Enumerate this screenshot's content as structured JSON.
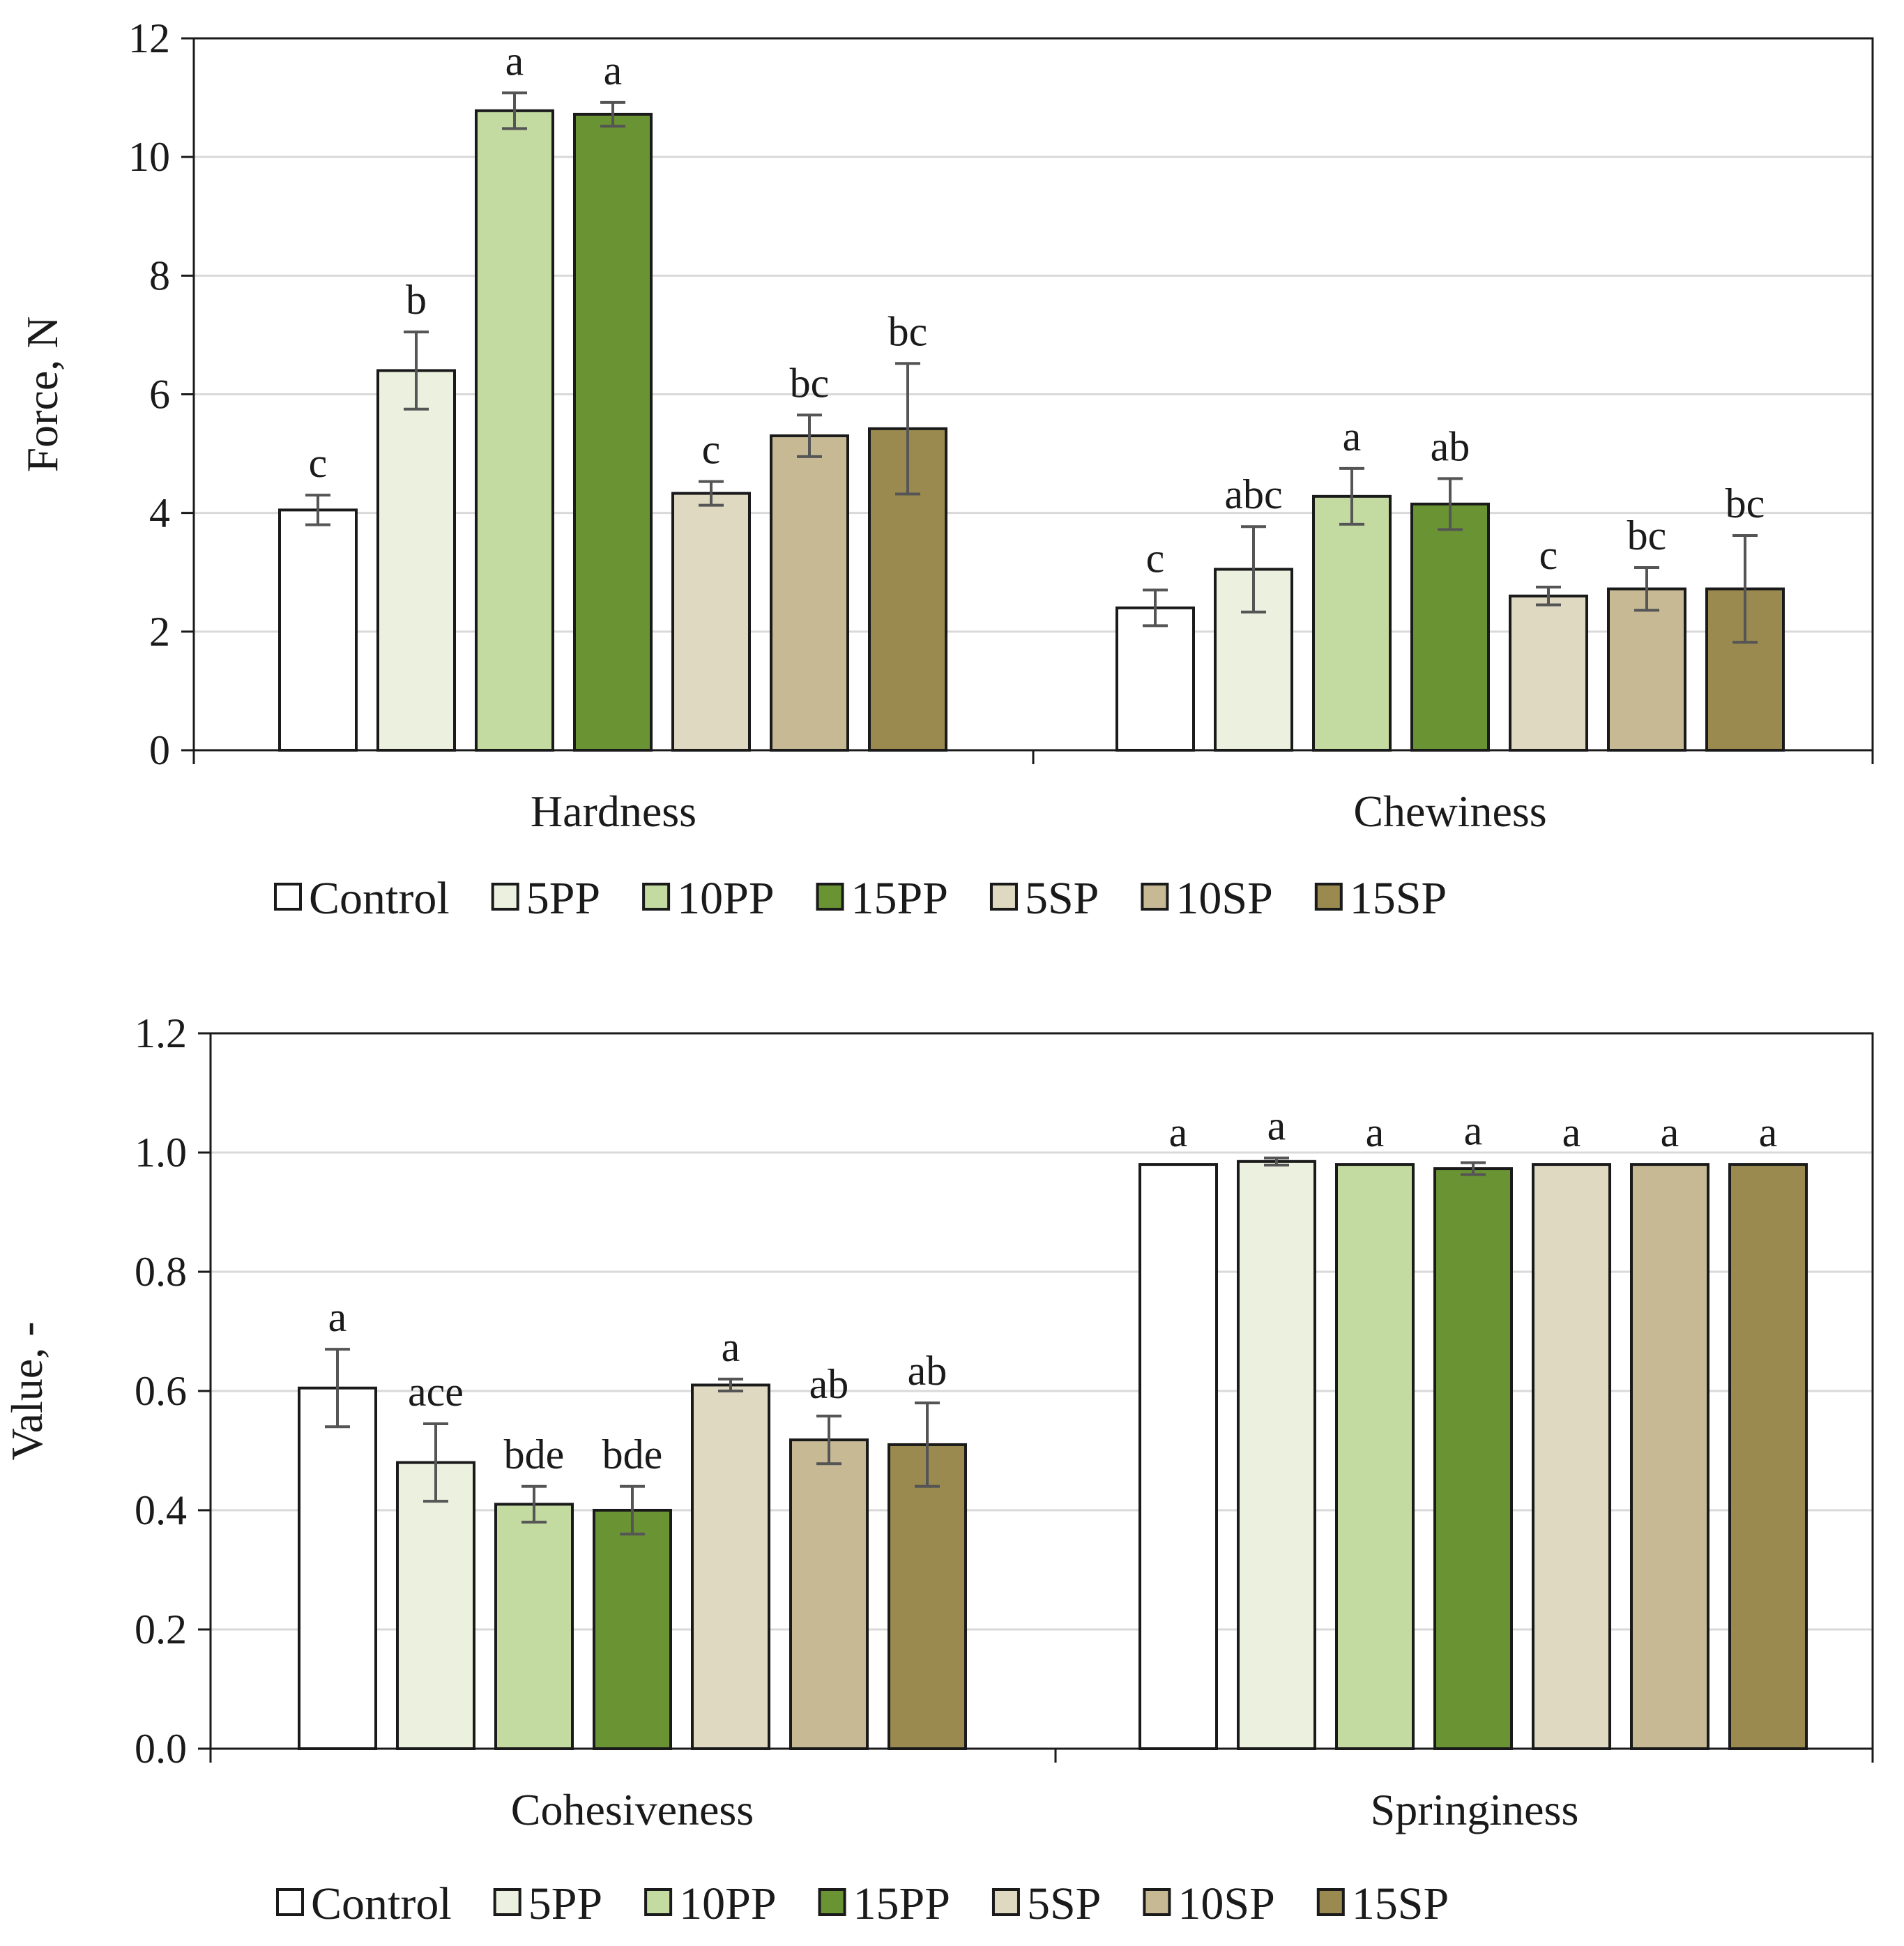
{
  "legend_labels": [
    "Control",
    "5PP",
    "10PP",
    "15PP",
    "5SP",
    "10SP",
    "15SP"
  ],
  "colors": {
    "series": [
      "#ffffff",
      "#ebf1de",
      "#c3dba0",
      "#6a9433",
      "#dfd9c2",
      "#c6b994",
      "#9a8a50"
    ],
    "bar_stroke": "#1a1a1a",
    "grid": "#d9d9d9",
    "error_bar": "#555555",
    "axis": "#1a1a1a"
  },
  "chart_data": [
    {
      "type": "bar",
      "ylabel": "Force, N",
      "ylim": [
        0,
        12
      ],
      "ytick_step": 2,
      "ytick_labels": [
        "0",
        "2",
        "4",
        "6",
        "8",
        "10",
        "12"
      ],
      "categories": [
        "Hardness",
        "Chewiness"
      ],
      "legend": "bottom",
      "series": [
        {
          "name": "Control",
          "values": [
            4.05,
            2.4
          ],
          "errors": [
            0.25,
            0.3
          ],
          "letters": [
            "c",
            "c"
          ]
        },
        {
          "name": "5PP",
          "values": [
            6.4,
            3.05
          ],
          "errors": [
            0.65,
            0.72
          ],
          "letters": [
            "b",
            "abc"
          ]
        },
        {
          "name": "10PP",
          "values": [
            10.78,
            4.28
          ],
          "errors": [
            0.3,
            0.47
          ],
          "letters": [
            "a",
            "a"
          ]
        },
        {
          "name": "15PP",
          "values": [
            10.72,
            4.15
          ],
          "errors": [
            0.2,
            0.43
          ],
          "letters": [
            "a",
            "ab"
          ]
        },
        {
          "name": "5SP",
          "values": [
            4.33,
            2.6
          ],
          "errors": [
            0.2,
            0.15
          ],
          "letters": [
            "c",
            "c"
          ]
        },
        {
          "name": "10SP",
          "values": [
            5.3,
            2.72
          ],
          "errors": [
            0.35,
            0.36
          ],
          "letters": [
            "bc",
            "bc"
          ]
        },
        {
          "name": "15SP",
          "values": [
            5.42,
            2.72
          ],
          "errors": [
            1.1,
            0.9
          ],
          "letters": [
            "bc",
            "bc"
          ]
        }
      ]
    },
    {
      "type": "bar",
      "ylabel": "Value, -",
      "ylim": [
        0,
        1.2
      ],
      "ytick_step": 0.2,
      "ytick_labels": [
        "0.0",
        "0.2",
        "0.4",
        "0.6",
        "0.8",
        "1.0",
        "1.2"
      ],
      "categories": [
        "Cohesiveness",
        "Springiness"
      ],
      "legend": "bottom",
      "series": [
        {
          "name": "Control",
          "values": [
            0.605,
            0.98
          ],
          "errors": [
            0.065,
            0
          ],
          "letters": [
            "a",
            "a"
          ]
        },
        {
          "name": "5PP",
          "values": [
            0.48,
            0.985
          ],
          "errors": [
            0.065,
            0.006
          ],
          "letters": [
            "ace",
            "a"
          ]
        },
        {
          "name": "10PP",
          "values": [
            0.41,
            0.98
          ],
          "errors": [
            0.03,
            0
          ],
          "letters": [
            "bde",
            "a"
          ]
        },
        {
          "name": "15PP",
          "values": [
            0.4,
            0.973
          ],
          "errors": [
            0.04,
            0.01
          ],
          "letters": [
            "bde",
            "a"
          ]
        },
        {
          "name": "5SP",
          "values": [
            0.61,
            0.98
          ],
          "errors": [
            0.01,
            0
          ],
          "letters": [
            "a",
            "a"
          ]
        },
        {
          "name": "10SP",
          "values": [
            0.518,
            0.98
          ],
          "errors": [
            0.04,
            0
          ],
          "letters": [
            "ab",
            "a"
          ]
        },
        {
          "name": "15SP",
          "values": [
            0.51,
            0.98
          ],
          "errors": [
            0.07,
            0
          ],
          "letters": [
            "ab",
            "a"
          ]
        }
      ]
    }
  ]
}
